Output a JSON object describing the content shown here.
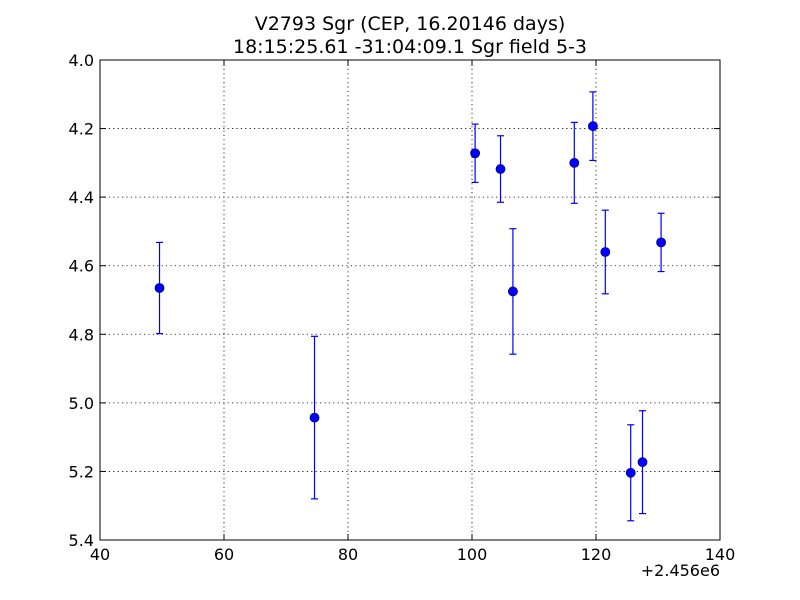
{
  "chart_data": {
    "type": "scatter",
    "title": "V2793 Sgr  (CEP, 16.20146 days)",
    "subtitle": "18:15:25.61 -31:04:09.1 Sgr field 5-3",
    "xlabel": "",
    "ylabel": "",
    "x_offset_label": "+2.456e6",
    "xlim": [
      40,
      140
    ],
    "ylim": [
      4.0,
      5.4
    ],
    "y_inverted": true,
    "grid": true,
    "x_ticks": [
      "40",
      "60",
      "80",
      "100",
      "120",
      "140"
    ],
    "y_ticks": [
      "4.0",
      "4.2",
      "4.4",
      "4.6",
      "4.8",
      "5.0",
      "5.2",
      "5.4"
    ],
    "marker_color": "#0000ff",
    "points": [
      {
        "x": 49.6,
        "y": 4.665,
        "err": 0.133
      },
      {
        "x": 74.6,
        "y": 5.043,
        "err": 0.237
      },
      {
        "x": 100.5,
        "y": 4.272,
        "err": 0.085
      },
      {
        "x": 104.6,
        "y": 4.318,
        "err": 0.097
      },
      {
        "x": 106.6,
        "y": 4.675,
        "err": 0.183
      },
      {
        "x": 116.5,
        "y": 4.3,
        "err": 0.118
      },
      {
        "x": 119.5,
        "y": 4.193,
        "err": 0.1
      },
      {
        "x": 121.5,
        "y": 4.56,
        "err": 0.122
      },
      {
        "x": 125.6,
        "y": 5.204,
        "err": 0.14
      },
      {
        "x": 127.5,
        "y": 5.173,
        "err": 0.15
      },
      {
        "x": 130.5,
        "y": 4.532,
        "err": 0.085
      }
    ]
  }
}
